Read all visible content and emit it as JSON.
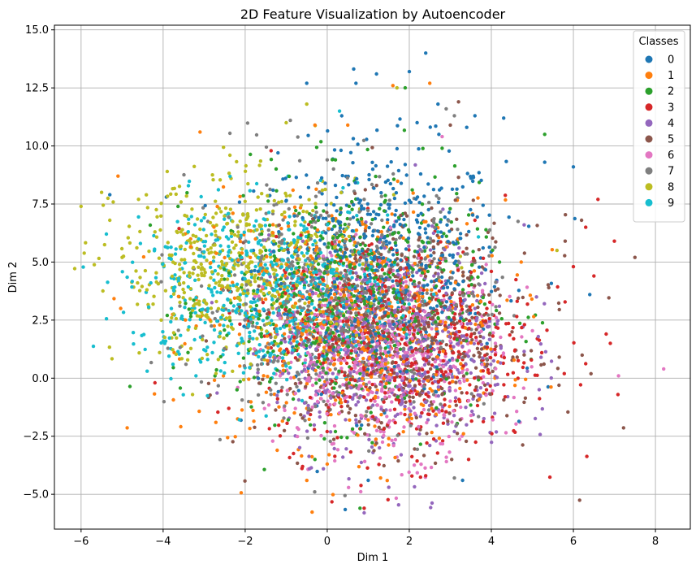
{
  "chart_data": {
    "type": "scatter",
    "title": "2D Feature Visualization by Autoencoder",
    "xlabel": "Dim 1",
    "ylabel": "Dim 2",
    "xlim": [
      -6.65,
      8.85
    ],
    "ylim": [
      -6.5,
      15.2
    ],
    "xticks": [
      -6,
      -4,
      -2,
      0,
      2,
      4,
      6,
      8
    ],
    "yticks": [
      -5.0,
      -2.5,
      0.0,
      2.5,
      5.0,
      7.5,
      10.0,
      12.5,
      15.0
    ],
    "xtick_labels": [
      "−6",
      "−4",
      "−2",
      "0",
      "2",
      "4",
      "6",
      "8"
    ],
    "ytick_labels": [
      "−5.0",
      "−2.5",
      "0.0",
      "2.5",
      "5.0",
      "7.5",
      "10.0",
      "12.5",
      "15.0"
    ],
    "grid": true,
    "legend": {
      "title": "Classes",
      "placement": "top-right"
    },
    "series": [
      {
        "name": "0",
        "color": "#1f77b4",
        "center": [
          1.3,
          4.8
        ],
        "spread": [
          1.5,
          2.6
        ],
        "points": [
          [
            2.4,
            14.0
          ],
          [
            0.7,
            12.7
          ],
          [
            1.2,
            13.1
          ],
          [
            2.0,
            13.2
          ],
          [
            2.7,
            11.8
          ],
          [
            3.6,
            11.3
          ],
          [
            3.4,
            10.8
          ],
          [
            6.0,
            9.1
          ],
          [
            -1.2,
            9.7
          ],
          [
            -0.5,
            12.7
          ],
          [
            4.3,
            11.2
          ],
          [
            5.3,
            9.3
          ],
          [
            1.5,
            4.5
          ],
          [
            0.9,
            6.2
          ],
          [
            2.2,
            7.8
          ],
          [
            1.1,
            3.6
          ],
          [
            0.4,
            2.2
          ],
          [
            -1.8,
            5.5
          ],
          [
            2.8,
            6.1
          ],
          [
            1.7,
            2.4
          ],
          [
            3.1,
            3.2
          ],
          [
            0.2,
            8.3
          ],
          [
            1.9,
            9.2
          ],
          [
            -0.6,
            6.9
          ],
          [
            0.6,
            -0.4
          ],
          [
            2.4,
            0.8
          ],
          [
            1.0,
            -4.4
          ],
          [
            6.4,
            3.6
          ],
          [
            3.3,
            -4.4
          ],
          [
            -5.3,
            7.9
          ]
        ]
      },
      {
        "name": "1",
        "color": "#ff7f0e",
        "center": [
          0.5,
          2.4
        ],
        "spread": [
          1.9,
          2.6
        ],
        "points": [
          [
            -3.1,
            10.6
          ],
          [
            -5.1,
            8.7
          ],
          [
            1.6,
            12.6
          ],
          [
            0.5,
            10.9
          ],
          [
            -0.3,
            10.9
          ],
          [
            2.5,
            12.7
          ],
          [
            0.9,
            1.2
          ],
          [
            -0.6,
            3.5
          ],
          [
            1.8,
            4.2
          ],
          [
            2.2,
            -0.6
          ],
          [
            0.0,
            -3.7
          ],
          [
            1.3,
            -4.3
          ],
          [
            -2.3,
            7.1
          ],
          [
            3.2,
            2.0
          ],
          [
            1.0,
            -1.8
          ],
          [
            -1.3,
            0.9
          ],
          [
            0.4,
            5.4
          ],
          [
            2.5,
            3.3
          ],
          [
            -0.8,
            -1.5
          ],
          [
            1.5,
            -2.6
          ]
        ]
      },
      {
        "name": "2",
        "color": "#2ca02c",
        "center": [
          0.5,
          3.4
        ],
        "spread": [
          1.6,
          2.5
        ],
        "points": [
          [
            5.3,
            10.5
          ],
          [
            1.9,
            12.5
          ],
          [
            0.2,
            9.4
          ],
          [
            -3.9,
            2.7
          ],
          [
            -2.2,
            -0.5
          ],
          [
            -0.3,
            -3.5
          ],
          [
            0.8,
            -5.6
          ],
          [
            1.3,
            0.4
          ],
          [
            2.0,
            6.3
          ],
          [
            -1.0,
            4.3
          ],
          [
            1.6,
            2.7
          ],
          [
            -0.3,
            1.5
          ],
          [
            2.5,
            4.8
          ],
          [
            0.6,
            7.6
          ],
          [
            4.2,
            5.0
          ],
          [
            3.4,
            0.2
          ],
          [
            -1.6,
            6.2
          ],
          [
            0.2,
            -2.3
          ],
          [
            1.1,
            3.9
          ],
          [
            2.8,
            9.9
          ]
        ]
      },
      {
        "name": "3",
        "color": "#d62728",
        "center": [
          1.8,
          1.6
        ],
        "spread": [
          1.6,
          2.3
        ],
        "points": [
          [
            6.3,
            6.5
          ],
          [
            6.6,
            7.7
          ],
          [
            7.0,
            5.9
          ],
          [
            6.5,
            4.4
          ],
          [
            6.0,
            4.8
          ],
          [
            6.8,
            1.9
          ],
          [
            6.9,
            1.5
          ],
          [
            -4.2,
            -0.2
          ],
          [
            -2.4,
            -1.3
          ],
          [
            -0.6,
            -3.8
          ],
          [
            0.9,
            -5.6
          ],
          [
            2.4,
            -4.2
          ],
          [
            2.1,
            0.6
          ],
          [
            3.3,
            2.2
          ],
          [
            1.2,
            0.8
          ],
          [
            2.8,
            -1.4
          ],
          [
            4.0,
            4.6
          ],
          [
            0.3,
            3.2
          ],
          [
            1.7,
            -0.9
          ],
          [
            3.6,
            6.8
          ]
        ]
      },
      {
        "name": "4",
        "color": "#9467bd",
        "center": [
          1.6,
          1.3
        ],
        "spread": [
          1.5,
          2.2
        ],
        "points": [
          [
            0.9,
            -5.8
          ],
          [
            1.5,
            -4.7
          ],
          [
            2.5,
            -2.9
          ],
          [
            4.8,
            6.6
          ],
          [
            5.1,
            3.5
          ],
          [
            1.3,
            0.2
          ],
          [
            2.0,
            1.9
          ],
          [
            0.7,
            -1.8
          ],
          [
            3.0,
            0.5
          ],
          [
            1.0,
            3.3
          ],
          [
            2.6,
            4.4
          ],
          [
            -0.4,
            0.9
          ],
          [
            4.4,
            -0.8
          ],
          [
            1.8,
            -3.3
          ],
          [
            0.2,
            2.4
          ],
          [
            3.6,
            3.0
          ],
          [
            2.3,
            -1.5
          ],
          [
            -1.2,
            2.7
          ],
          [
            1.4,
            5.6
          ],
          [
            3.1,
            -2.3
          ]
        ]
      },
      {
        "name": "5",
        "color": "#8c564b",
        "center": [
          1.8,
          2.0
        ],
        "spread": [
          1.7,
          2.4
        ],
        "points": [
          [
            7.5,
            5.2
          ],
          [
            5.8,
            5.9
          ],
          [
            6.2,
            6.8
          ],
          [
            3.0,
            10.9
          ],
          [
            3.2,
            11.9
          ],
          [
            4.8,
            1.0
          ],
          [
            2.3,
            2.6
          ],
          [
            0.9,
            0.5
          ],
          [
            3.5,
            4.4
          ],
          [
            1.4,
            3.5
          ],
          [
            2.8,
            -0.7
          ],
          [
            -0.3,
            4.1
          ],
          [
            4.2,
            2.8
          ],
          [
            1.9,
            7.1
          ],
          [
            3.9,
            0.6
          ],
          [
            0.5,
            -1.2
          ],
          [
            2.6,
            5.4
          ],
          [
            -1.0,
            2.9
          ],
          [
            5.4,
            3.9
          ],
          [
            1.2,
            -2.8
          ]
        ]
      },
      {
        "name": "6",
        "color": "#e377c2",
        "center": [
          1.4,
          1.0
        ],
        "spread": [
          1.4,
          2.1
        ],
        "points": [
          [
            8.2,
            0.4
          ],
          [
            7.1,
            0.1
          ],
          [
            4.7,
            -1.9
          ],
          [
            2.8,
            10.4
          ],
          [
            0.3,
            -1.5
          ],
          [
            1.1,
            0.6
          ],
          [
            2.0,
            1.3
          ],
          [
            1.6,
            -0.5
          ],
          [
            0.6,
            2.1
          ],
          [
            2.7,
            0.2
          ],
          [
            3.3,
            2.8
          ],
          [
            -0.2,
            0.1
          ],
          [
            1.3,
            -2.3
          ],
          [
            2.2,
            3.7
          ],
          [
            0.9,
            4.6
          ],
          [
            4.1,
            1.5
          ],
          [
            1.7,
            -3.4
          ],
          [
            -0.8,
            1.7
          ],
          [
            3.7,
            -0.9
          ],
          [
            0.2,
            5.8
          ]
        ]
      },
      {
        "name": "7",
        "color": "#7f7f7f",
        "center": [
          0.3,
          3.4
        ],
        "spread": [
          1.8,
          2.5
        ],
        "points": [
          [
            -0.9,
            11.1
          ],
          [
            3.1,
            11.3
          ],
          [
            2.9,
            11.6
          ],
          [
            0.0,
            9.4
          ],
          [
            -0.8,
            1.7
          ],
          [
            0.7,
            2.8
          ],
          [
            1.9,
            5.2
          ],
          [
            -1.6,
            4.3
          ],
          [
            0.2,
            0.4
          ],
          [
            2.6,
            6.7
          ],
          [
            -0.4,
            6.0
          ],
          [
            1.3,
            1.3
          ],
          [
            3.4,
            3.1
          ],
          [
            -2.3,
            2.9
          ],
          [
            0.9,
            7.7
          ],
          [
            4.6,
            1.2
          ],
          [
            -1.1,
            -0.4
          ],
          [
            2.0,
            -1.7
          ],
          [
            1.5,
            3.9
          ],
          [
            3.1,
            -4.3
          ]
        ]
      },
      {
        "name": "8",
        "color": "#bcbd22",
        "center": [
          -2.1,
          4.6
        ],
        "spread": [
          1.5,
          1.9
        ],
        "points": [
          [
            -6.0,
            7.4
          ],
          [
            -5.5,
            8.0
          ],
          [
            -5.3,
            6.8
          ],
          [
            -5.0,
            5.2
          ],
          [
            -4.6,
            7.7
          ],
          [
            -3.9,
            8.9
          ],
          [
            -1.0,
            11.0
          ],
          [
            -0.5,
            11.8
          ],
          [
            1.7,
            12.5
          ],
          [
            -3.2,
            6.1
          ],
          [
            -2.0,
            4.5
          ],
          [
            -2.7,
            3.3
          ],
          [
            -1.3,
            5.9
          ],
          [
            -3.6,
            4.9
          ],
          [
            -0.8,
            3.1
          ],
          [
            -2.3,
            7.1
          ],
          [
            -1.6,
            2.1
          ],
          [
            -4.2,
            6.3
          ],
          [
            0.2,
            4.0
          ],
          [
            -2.9,
            2.6
          ],
          [
            5.6,
            5.5
          ]
        ]
      },
      {
        "name": "9",
        "color": "#17becf",
        "center": [
          -1.6,
          3.8
        ],
        "spread": [
          1.6,
          1.9
        ],
        "points": [
          [
            0.3,
            11.5
          ],
          [
            -4.0,
            1.6
          ],
          [
            -3.2,
            0.1
          ],
          [
            -2.8,
            1.1
          ],
          [
            -3.4,
            4.4
          ],
          [
            -2.0,
            3.2
          ],
          [
            -1.1,
            5.1
          ],
          [
            -2.6,
            5.7
          ],
          [
            -0.6,
            2.3
          ],
          [
            -3.8,
            3.0
          ],
          [
            -1.6,
            6.4
          ],
          [
            0.4,
            4.4
          ],
          [
            -2.2,
            1.4
          ],
          [
            -0.3,
            7.0
          ],
          [
            -1.3,
            0.2
          ],
          [
            -3.0,
            6.9
          ],
          [
            1.0,
            2.9
          ],
          [
            -4.3,
            4.1
          ],
          [
            -1.8,
            2.6
          ],
          [
            2.7,
            6.3
          ]
        ]
      }
    ]
  }
}
